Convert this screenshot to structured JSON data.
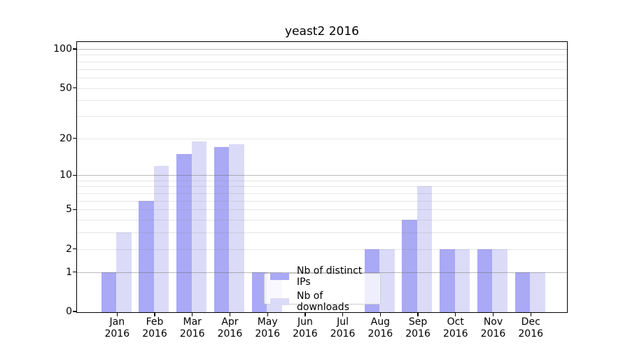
{
  "figure": {
    "title": "yeast2 2016"
  },
  "legend": {
    "items": [
      {
        "label": "Nb of distinct IPs"
      },
      {
        "label": "Nb of downloads"
      }
    ]
  },
  "colors": {
    "series_distinct_ips": "#a9a9f5",
    "series_downloads": "#dbdbf8",
    "major_grid": "rgba(105,105,105,0.45)",
    "minor_grid": "rgba(130,130,130,0.20)",
    "axis": "#000000",
    "legend_border": "#cccccc",
    "legend_bg": "rgba(255,255,255,0.8)"
  },
  "chart_data": {
    "type": "bar",
    "title": "yeast2 2016",
    "categories": [
      "Jan",
      "Feb",
      "Mar",
      "Apr",
      "May",
      "Jun",
      "Jul",
      "Aug",
      "Sep",
      "Oct",
      "Nov",
      "Dec"
    ],
    "year": "2016",
    "series": [
      {
        "name": "Nb of distinct IPs",
        "values": [
          1,
          6,
          15,
          17,
          1,
          0,
          0,
          2,
          4,
          2,
          2,
          1
        ]
      },
      {
        "name": "Nb of downloads",
        "values": [
          3,
          12,
          19,
          18,
          1,
          0,
          0,
          2,
          8,
          2,
          2,
          1
        ]
      }
    ],
    "yscale": "log10(1+x)",
    "ylim": [
      0,
      114
    ],
    "y_tick_labels": [
      "0",
      "1",
      "2",
      "5",
      "10",
      "20",
      "50",
      "100"
    ],
    "y_major_gridline_values": [
      1,
      10,
      100
    ],
    "y_minor_gridline_values": [
      2,
      3,
      4,
      5,
      6,
      7,
      8,
      9,
      20,
      30,
      40,
      50,
      60,
      70,
      80,
      90
    ],
    "xlabel": "",
    "ylabel": "",
    "grid": true,
    "legend_position": "lower center inside"
  }
}
